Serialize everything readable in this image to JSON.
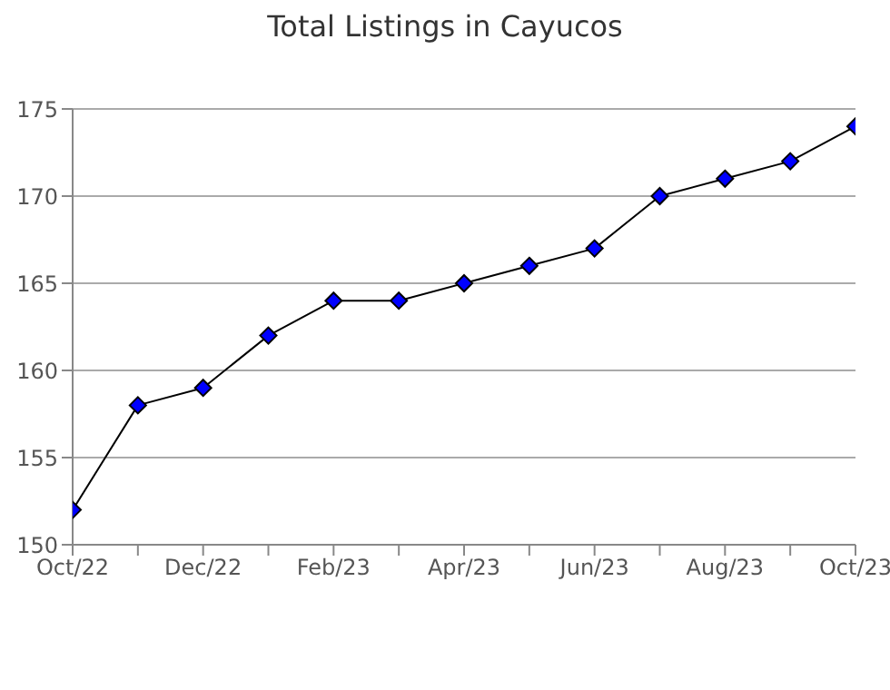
{
  "chart_data": {
    "type": "line",
    "title": "Total Listings in Cayucos",
    "categories": [
      "Oct/22",
      null,
      "Dec/22",
      null,
      "Feb/23",
      null,
      "Apr/23",
      null,
      "Jun/23",
      null,
      "Aug/23",
      null,
      "Oct/23"
    ],
    "series": [
      {
        "color": "#0000ff",
        "values": [
          152,
          158,
          159,
          162,
          164,
          164,
          165,
          166,
          167,
          170,
          171,
          172,
          174
        ]
      }
    ],
    "ylim": [
      150,
      175
    ],
    "yticks": [
      150,
      155,
      160,
      165,
      170,
      175
    ],
    "grid": "y",
    "legend": false,
    "marker": "diamond",
    "line_style": "solid"
  }
}
